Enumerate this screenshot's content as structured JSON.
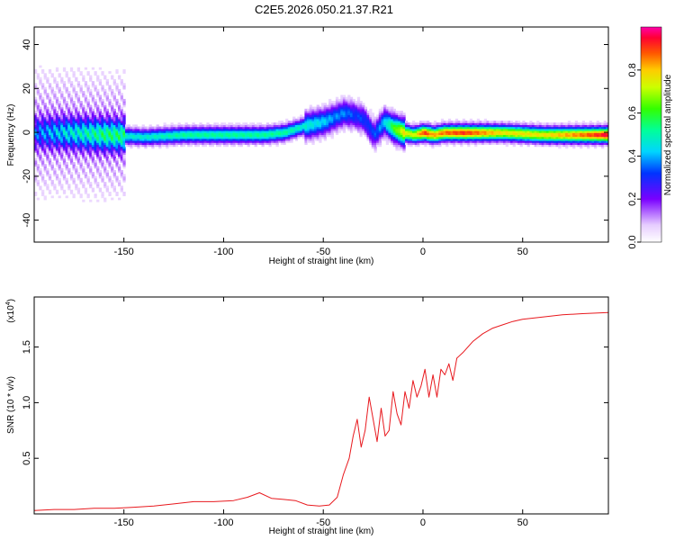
{
  "title": "C2E5.2026.050.21.37.R21",
  "chart_data": [
    {
      "type": "heatmap",
      "xlabel": "Height of straight line (km)",
      "ylabel": "Frequency (Hz)",
      "xlim": [
        -195,
        93
      ],
      "ylim": [
        -50,
        48
      ],
      "x_ticks": [
        -150,
        -100,
        -50,
        0,
        50
      ],
      "y_ticks": [
        -40,
        -20,
        0,
        20,
        40
      ],
      "colorbar": {
        "label": "Normalized spectral amplitude",
        "range": [
          0,
          1
        ],
        "ticks": [
          0.0,
          0.2,
          0.4,
          0.6,
          0.8
        ],
        "tick_labels": [
          "0.0",
          "0.2",
          "0.4",
          "0.6",
          "0.8"
        ]
      },
      "ridge": {
        "x": [
          -195,
          -180,
          -160,
          -140,
          -120,
          -100,
          -80,
          -70,
          -60,
          -50,
          -45,
          -40,
          -35,
          -30,
          -25,
          -20,
          -15,
          -10,
          -5,
          0,
          5,
          10,
          20,
          40,
          60,
          80,
          93
        ],
        "frequency": [
          0,
          0,
          -1,
          -2,
          -1,
          -1,
          -1,
          0,
          3,
          5,
          7,
          9,
          8,
          6,
          -1,
          5,
          2,
          0,
          -1,
          0,
          -1,
          0,
          0,
          0,
          -1,
          -1,
          -1
        ],
        "amplitude": [
          0.25,
          0.35,
          0.45,
          0.45,
          0.5,
          0.5,
          0.5,
          0.5,
          0.45,
          0.4,
          0.35,
          0.35,
          0.3,
          0.3,
          0.3,
          0.4,
          0.6,
          0.75,
          0.7,
          0.9,
          0.8,
          0.85,
          0.9,
          0.75,
          0.75,
          0.85,
          0.95
        ]
      }
    },
    {
      "type": "line",
      "xlabel": "Height of straight line (km)",
      "ylabel": "SNR (10 * v/v)",
      "y_multiplier_label": "(x10",
      "y_multiplier_exp": "4",
      "xlim": [
        -195,
        93
      ],
      "ylim": [
        0,
        1.95
      ],
      "x_ticks": [
        -150,
        -100,
        -50,
        0,
        50
      ],
      "y_ticks": [
        0.5,
        1.0,
        1.5
      ],
      "y_tick_labels": [
        "0.5",
        "1.0",
        "1.5"
      ],
      "series": [
        {
          "color": "#e8191e",
          "x": [
            -195,
            -185,
            -175,
            -165,
            -155,
            -145,
            -135,
            -125,
            -115,
            -105,
            -95,
            -88,
            -82,
            -76,
            -70,
            -64,
            -58,
            -52,
            -47,
            -43,
            -40,
            -37,
            -35,
            -33,
            -31,
            -29,
            -27,
            -25,
            -23,
            -21,
            -19,
            -17,
            -15,
            -13,
            -11,
            -9,
            -7,
            -5,
            -3,
            -1,
            1,
            3,
            5,
            7,
            9,
            11,
            13,
            15,
            17,
            20,
            25,
            30,
            35,
            40,
            45,
            50,
            60,
            70,
            80,
            93
          ],
          "y": [
            0.03,
            0.04,
            0.04,
            0.05,
            0.05,
            0.06,
            0.07,
            0.09,
            0.11,
            0.11,
            0.12,
            0.15,
            0.19,
            0.14,
            0.13,
            0.12,
            0.08,
            0.07,
            0.08,
            0.15,
            0.35,
            0.5,
            0.7,
            0.85,
            0.6,
            0.75,
            1.05,
            0.85,
            0.65,
            0.95,
            0.7,
            0.75,
            1.1,
            0.9,
            0.8,
            1.1,
            0.95,
            1.2,
            1.05,
            1.15,
            1.3,
            1.05,
            1.25,
            1.05,
            1.3,
            1.25,
            1.35,
            1.2,
            1.4,
            1.45,
            1.55,
            1.62,
            1.67,
            1.7,
            1.73,
            1.75,
            1.77,
            1.79,
            1.8,
            1.81
          ]
        }
      ]
    }
  ]
}
